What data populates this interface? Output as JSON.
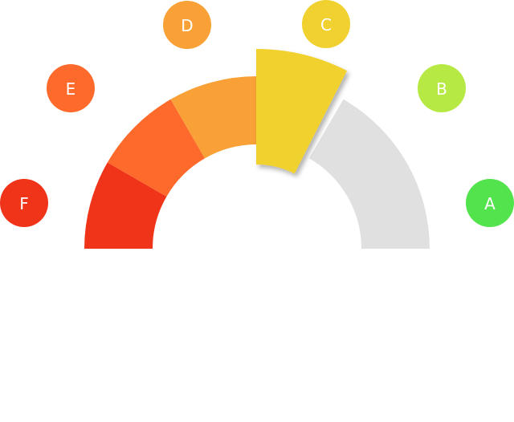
{
  "gauge": {
    "grades": [
      {
        "label": "F",
        "color": "#ef3419",
        "segment_color": "#ef3419"
      },
      {
        "label": "E",
        "color": "#fe6a2b",
        "segment_color": "#fe6a2b"
      },
      {
        "label": "D",
        "color": "#f9a136",
        "segment_color": "#f9a136"
      },
      {
        "label": "C",
        "color": "#f1d12f",
        "segment_color": "#f1d12f"
      },
      {
        "label": "B",
        "color": "#b6e944",
        "segment_color": "#e0e0e0"
      },
      {
        "label": "A",
        "color": "#52e34d",
        "segment_color": "#e0e0e0"
      }
    ],
    "selected": "C",
    "inactive_color": "#e0e0e0"
  }
}
